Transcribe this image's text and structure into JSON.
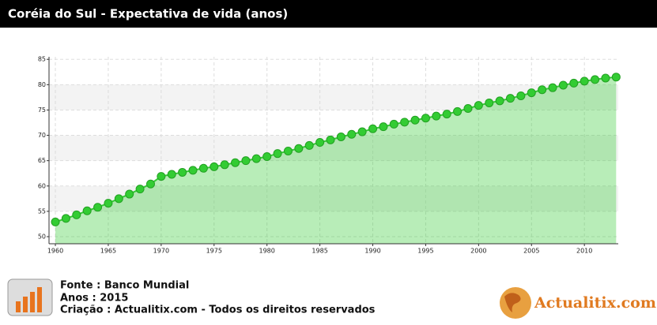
{
  "chart_data": {
    "type": "line",
    "title": "Coréia do Sul - Expectativa de vida (anos)",
    "x": [
      1960,
      1961,
      1962,
      1963,
      1964,
      1965,
      1966,
      1967,
      1968,
      1969,
      1970,
      1971,
      1972,
      1973,
      1974,
      1975,
      1976,
      1977,
      1978,
      1979,
      1980,
      1981,
      1982,
      1983,
      1984,
      1985,
      1986,
      1987,
      1988,
      1989,
      1990,
      1991,
      1992,
      1993,
      1994,
      1995,
      1996,
      1997,
      1998,
      1999,
      2000,
      2001,
      2002,
      2003,
      2004,
      2005,
      2006,
      2007,
      2008,
      2009,
      2010,
      2011,
      2012,
      2013
    ],
    "series": [
      {
        "color": "#33cc33",
        "values": [
          52.9,
          53.6,
          54.3,
          55.1,
          55.8,
          56.6,
          57.5,
          58.4,
          59.4,
          60.4,
          61.9,
          62.3,
          62.7,
          63.1,
          63.5,
          63.8,
          64.2,
          64.6,
          65.0,
          65.4,
          65.8,
          66.4,
          66.9,
          67.4,
          68.0,
          68.6,
          69.1,
          69.7,
          70.2,
          70.7,
          71.3,
          71.7,
          72.2,
          72.6,
          73.0,
          73.4,
          73.8,
          74.2,
          74.7,
          75.3,
          75.9,
          76.4,
          76.8,
          77.3,
          77.8,
          78.4,
          79.0,
          79.4,
          79.9,
          80.3,
          80.7,
          81.0,
          81.3,
          81.5
        ]
      }
    ],
    "xlim": [
      1959.4,
      2013.2
    ],
    "ylim": [
      48.6,
      85.5
    ],
    "xticks": [
      1960,
      1965,
      1970,
      1975,
      1980,
      1985,
      1990,
      1995,
      2000,
      2005,
      2010
    ],
    "yticks": [
      50,
      55,
      60,
      65,
      70,
      75,
      80,
      85
    ],
    "grid": true
  },
  "footer": {
    "source": "Fonte : Banco Mundial",
    "year": "Anos : 2015",
    "credit": "Criação : Actualitix.com - Todos os direitos reservados",
    "logo": "Actualitix.com"
  }
}
